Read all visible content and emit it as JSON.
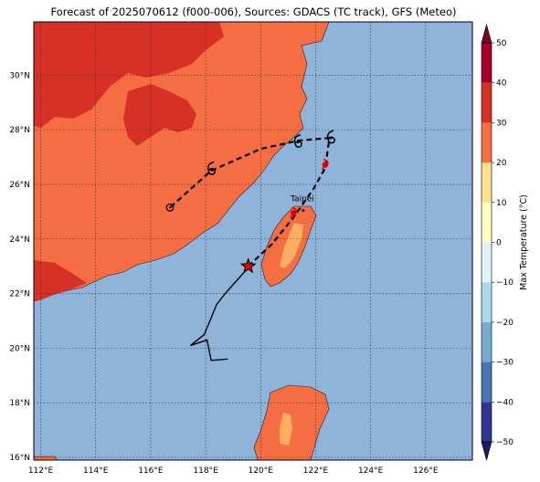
{
  "title": "Forecast of 2025070612 (f000-006), Sources: GDACS (TC track), GFS (Meteo)",
  "map": {
    "lon_range": [
      111.75,
      127.7
    ],
    "lat_range": [
      15.9,
      31.95
    ],
    "lon_ticks": [
      {
        "v": 112,
        "label": "112°E"
      },
      {
        "v": 114,
        "label": "114°E"
      },
      {
        "v": 116,
        "label": "116°E"
      },
      {
        "v": 118,
        "label": "118°E"
      },
      {
        "v": 120,
        "label": "120°E"
      },
      {
        "v": 122,
        "label": "122°E"
      },
      {
        "v": 124,
        "label": "124°E"
      },
      {
        "v": 126,
        "label": "126°E"
      }
    ],
    "lat_ticks": [
      {
        "v": 16,
        "label": "16°N"
      },
      {
        "v": 18,
        "label": "18°N"
      },
      {
        "v": 20,
        "label": "20°N"
      },
      {
        "v": 22,
        "label": "22°N"
      },
      {
        "v": 24,
        "label": "24°N"
      },
      {
        "v": 26,
        "label": "26°N"
      },
      {
        "v": 28,
        "label": "28°N"
      },
      {
        "v": 30,
        "label": "30°N"
      }
    ],
    "ocean_color": "#8fb3d9",
    "land_warm_color": "#f46d43",
    "land_hot_color": "#d73027",
    "land_mild_color": "#fdae61",
    "grid": true
  },
  "city": {
    "name": "Taipei",
    "lon": 121.55,
    "lat": 25.04
  },
  "track": {
    "past": [
      [
        118.8,
        19.6
      ],
      [
        118.2,
        19.55
      ],
      [
        118.05,
        20.3
      ],
      [
        117.45,
        20.1
      ],
      [
        117.95,
        20.5
      ],
      [
        118.4,
        21.6
      ],
      [
        118.75,
        22.05
      ],
      [
        119.55,
        22.95
      ]
    ],
    "current": [
      119.55,
      23.0
    ],
    "forecast": [
      [
        119.55,
        23.0
      ],
      [
        120.4,
        23.8
      ],
      [
        121.2,
        24.8
      ],
      [
        121.9,
        25.8
      ],
      [
        122.35,
        26.6
      ],
      [
        122.5,
        27.7
      ],
      [
        121.35,
        27.6
      ],
      [
        120.0,
        27.3
      ],
      [
        118.2,
        26.5
      ],
      [
        116.7,
        25.15
      ]
    ],
    "red_markers": [
      [
        121.2,
        24.95
      ],
      [
        122.35,
        26.72
      ]
    ],
    "storm_symbols": [
      [
        118.2,
        26.55
      ],
      [
        121.35,
        27.55
      ],
      [
        122.55,
        27.7
      ]
    ],
    "low_symbol": [
      116.7,
      25.15
    ]
  },
  "colorbar": {
    "label": "Max Temperature (°C)",
    "min": -50,
    "max": 50,
    "ticks": [
      {
        "v": 50,
        "label": "50"
      },
      {
        "v": 40,
        "label": "40"
      },
      {
        "v": 30,
        "label": "30"
      },
      {
        "v": 20,
        "label": "20"
      },
      {
        "v": 10,
        "label": "10"
      },
      {
        "v": 0,
        "label": "0"
      },
      {
        "v": -10,
        "label": "−10"
      },
      {
        "v": -20,
        "label": "−20"
      },
      {
        "v": -30,
        "label": "−30"
      },
      {
        "v": -40,
        "label": "−40"
      },
      {
        "v": -50,
        "label": "−50"
      }
    ],
    "bins": [
      {
        "from": -50,
        "to": -40,
        "color": "#313695"
      },
      {
        "from": -40,
        "to": -30,
        "color": "#4575b4"
      },
      {
        "from": -30,
        "to": -20,
        "color": "#74add1"
      },
      {
        "from": -20,
        "to": -10,
        "color": "#abd9e9"
      },
      {
        "from": -10,
        "to": 0,
        "color": "#e0f3f8"
      },
      {
        "from": 0,
        "to": 10,
        "color": "#ffffbf"
      },
      {
        "from": 10,
        "to": 20,
        "color": "#fee090"
      },
      {
        "from": 20,
        "to": 30,
        "color": "#f46d43"
      },
      {
        "from": 30,
        "to": 40,
        "color": "#d73027"
      },
      {
        "from": 40,
        "to": 50,
        "color": "#a50026"
      }
    ],
    "low_color": "#1b1b6e",
    "high_color": "#7f0026"
  }
}
